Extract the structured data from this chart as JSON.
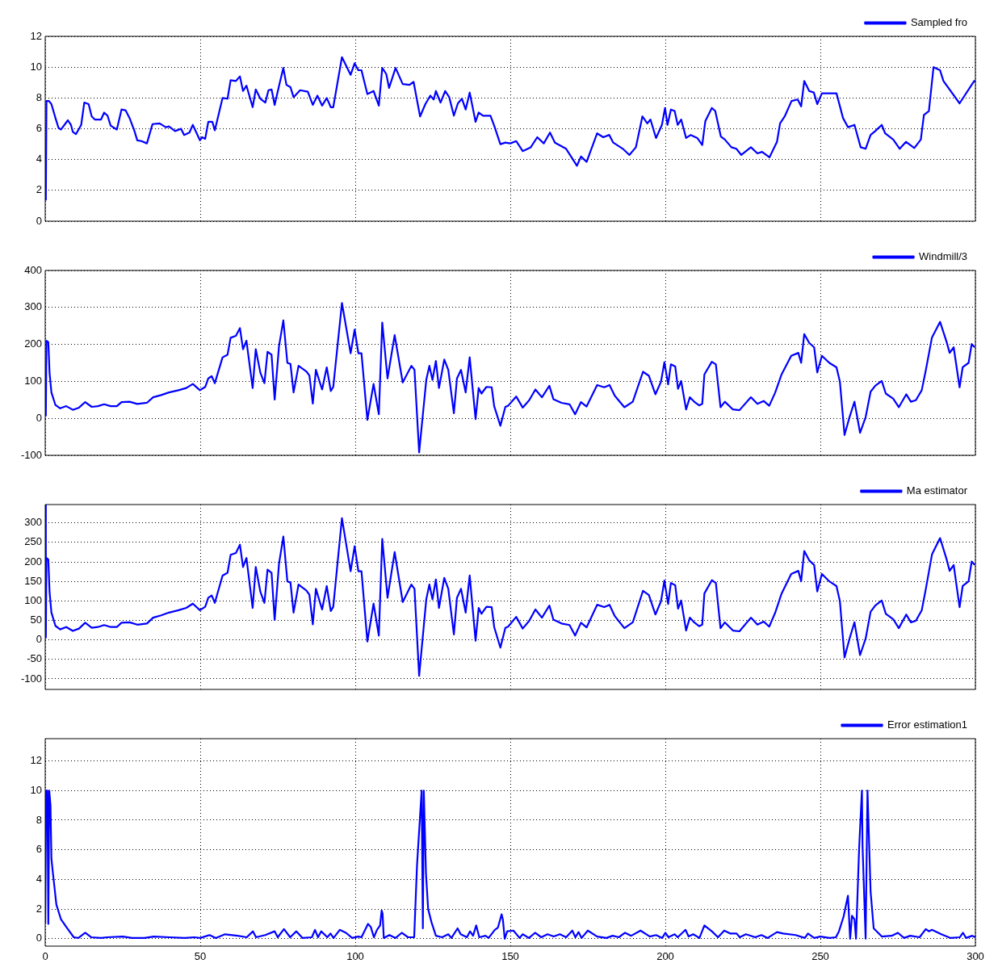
{
  "chart_data": [
    {
      "type": "line",
      "xlim": [
        0,
        300
      ],
      "xticks": [
        0,
        50,
        100,
        150,
        200,
        250,
        300
      ],
      "ylim": [
        0,
        12
      ],
      "yticks": [
        0,
        2,
        4,
        6,
        8,
        10,
        12
      ],
      "grid": true,
      "legend": "top right",
      "tick_labels": "y",
      "series": [
        {
          "name": "Sampled fro",
          "color": "#0000ff",
          "x": [
            0.2,
            0.4,
            1.2,
            2,
            3.3,
            4.3,
            5.1,
            7.3,
            8.3,
            8.9,
            9.9,
            11.6,
            12.6,
            14,
            15,
            16,
            18,
            19,
            20.1,
            21.1,
            23.1,
            24.6,
            25.9,
            27.2,
            28.7,
            29.7,
            31,
            32.8,
            34.6,
            36.9,
            38.9,
            39.9,
            41.9,
            43.8,
            44.8,
            46.5,
            47.6,
            49.9,
            50.6,
            51.6,
            52.6,
            53.9,
            54.7,
            57.2,
            58.8,
            59.8,
            61.5,
            62.8,
            63.8,
            64.9,
            66.9,
            67.9,
            69.4,
            71,
            72,
            73,
            74,
            75.6,
            76.8,
            77.8,
            79.1,
            80.1,
            82.2,
            84.7,
            86.3,
            87.8,
            89.3,
            90.8,
            92.1,
            92.9,
            95.7,
            98.5,
            99.8,
            101,
            102,
            103.9,
            105.9,
            107.6,
            108.7,
            110,
            110.9,
            113,
            115.3,
            117.5,
            118.8,
            120.9,
            122.6,
            124.2,
            125.3,
            126,
            127.5,
            129,
            130.3,
            131.8,
            133.1,
            134.4,
            135.6,
            136.9,
            138.8,
            139.8,
            141.2,
            143.6,
            144.8,
            146.8,
            148.4,
            150,
            151.9,
            154,
            156.6,
            158.7,
            160.8,
            162.8,
            164.4,
            168,
            171.5,
            172.8,
            174.6,
            178,
            180,
            181.9,
            183.2,
            186.3,
            188.4,
            190.5,
            192.6,
            194.2,
            195.2,
            197,
            198.9,
            199.9,
            200.7,
            201.8,
            203,
            204,
            205.1,
            206.7,
            208.2,
            210.3,
            211.9,
            212.9,
            215,
            216.1,
            217.9,
            219.2,
            221.3,
            222.9,
            224.5,
            227.6,
            229.7,
            231.2,
            233.6,
            236,
            237,
            238.5,
            240.7,
            242.7,
            243.8,
            244.8,
            246.4,
            247.9,
            249,
            250.5,
            252.1,
            255.2,
            257.3,
            258.9,
            261,
            263,
            264.6,
            266.2,
            267.7,
            269.8,
            270.9,
            273.5,
            275.6,
            277.6,
            280.3,
            282.4,
            283.4,
            285,
            286.5,
            288.6,
            289.7,
            294.9,
            299.6,
            300
          ],
          "values": [
            1.35,
            7.8,
            7.8,
            7.6,
            6.7,
            6.05,
            5.95,
            6.55,
            6.25,
            5.8,
            5.65,
            6.25,
            7.7,
            7.6,
            6.8,
            6.6,
            6.6,
            7.05,
            6.85,
            6.2,
            5.95,
            7.25,
            7.2,
            6.7,
            5.9,
            5.25,
            5.2,
            5.05,
            6.3,
            6.35,
            6.1,
            6.15,
            5.85,
            6.0,
            5.6,
            5.75,
            6.25,
            5.25,
            5.45,
            5.35,
            6.45,
            6.45,
            5.9,
            8.0,
            7.95,
            9.15,
            9.1,
            9.4,
            8.45,
            8.8,
            7.4,
            8.55,
            7.95,
            7.7,
            8.5,
            8.55,
            7.55,
            8.95,
            9.95,
            8.85,
            8.7,
            8.05,
            8.5,
            8.4,
            7.55,
            8.15,
            7.5,
            8.0,
            7.4,
            7.4,
            10.65,
            9.5,
            10.25,
            9.8,
            9.8,
            8.25,
            8.45,
            7.5,
            9.95,
            9.55,
            8.65,
            9.95,
            8.9,
            8.85,
            9.05,
            6.8,
            7.6,
            8.15,
            7.9,
            8.45,
            7.7,
            8.45,
            8.05,
            6.85,
            7.65,
            7.95,
            7.25,
            8.35,
            6.45,
            7.05,
            6.85,
            6.85,
            6.2,
            5.0,
            5.1,
            5.05,
            5.2,
            4.55,
            4.8,
            5.45,
            5.05,
            5.75,
            5.1,
            4.7,
            3.6,
            4.2,
            3.85,
            5.7,
            5.45,
            5.6,
            5.1,
            4.7,
            4.3,
            4.8,
            6.8,
            6.35,
            6.6,
            5.4,
            6.25,
            7.35,
            6.25,
            7.25,
            7.15,
            6.25,
            6.6,
            5.4,
            5.6,
            5.4,
            4.95,
            6.5,
            7.35,
            7.15,
            5.5,
            5.3,
            4.8,
            4.7,
            4.3,
            4.8,
            4.4,
            4.5,
            4.15,
            5.15,
            6.35,
            6.8,
            7.8,
            7.9,
            7.45,
            9.1,
            8.45,
            8.35,
            7.6,
            8.3,
            8.3,
            8.3,
            6.7,
            6.1,
            6.25,
            4.8,
            4.7,
            5.6,
            5.85,
            6.25,
            5.7,
            5.3,
            4.7,
            5.15,
            4.75,
            5.3,
            6.9,
            7.15,
            10.0,
            9.8,
            9.1,
            7.65,
            9.1,
            9.1
          ]
        }
      ]
    },
    {
      "type": "line",
      "xlim": [
        0,
        300
      ],
      "xticks": [
        0,
        50,
        100,
        150,
        200,
        250,
        300
      ],
      "ylim": [
        -100,
        400
      ],
      "yticks": [
        -100,
        0,
        100,
        200,
        300,
        400
      ],
      "grid": true,
      "legend": "top right",
      "tick_labels": "y",
      "series": [
        {
          "name": "Windmill/3",
          "color": "#0000ff",
          "x": [
            0.2,
            0.4,
            1,
            1.4,
            2,
            3.3,
            4.8,
            6.8,
            8.9,
            10.9,
            12.9,
            15,
            17,
            19,
            21.1,
            23.1,
            24.6,
            27.2,
            29.7,
            32.8,
            34.8,
            37.4,
            39.9,
            43,
            45.5,
            47.6,
            49.9,
            51.6,
            52.6,
            53.7,
            54.7,
            57.2,
            58.8,
            59.8,
            61.5,
            62.8,
            63.8,
            64.9,
            66.9,
            67.9,
            69.4,
            70.7,
            71.7,
            73,
            74,
            75.4,
            76.8,
            78.1,
            79.1,
            80.1,
            81.7,
            84.2,
            85.2,
            86.3,
            87.3,
            89.3,
            90.8,
            92.1,
            92.9,
            95.7,
            98.5,
            99.8,
            101,
            102,
            103.9,
            105.9,
            107.6,
            108.7,
            110.4,
            112.7,
            115.3,
            118.1,
            119.1,
            120.6,
            122.9,
            123.9,
            124.9,
            126,
            127,
            128.7,
            130,
            131.8,
            132.8,
            134.1,
            135.6,
            136.9,
            138.8,
            139.8,
            140.7,
            142.3,
            144,
            144.8,
            146.8,
            148.4,
            149.3,
            151.9,
            154,
            156.1,
            158.1,
            160.2,
            162.6,
            163.9,
            166.5,
            169.1,
            170.9,
            172.8,
            174.6,
            178,
            180.3,
            182,
            183.7,
            186.8,
            189.5,
            192.8,
            194.7,
            196.8,
            198.6,
            199.7,
            200.9,
            201.8,
            203.2,
            204.1,
            205.1,
            206.7,
            207.9,
            209.3,
            210.9,
            211.9,
            212.6,
            215,
            216.3,
            217.8,
            219.2,
            221.8,
            223.9,
            227.6,
            229.7,
            231.7,
            233.5,
            235.4,
            237.5,
            240.6,
            242.9,
            243.8,
            244.8,
            246.4,
            248,
            249,
            250.5,
            252.9,
            255.2,
            256.3,
            257.8,
            259.4,
            261,
            262.8,
            264.6,
            266.2,
            267.7,
            269.8,
            271.1,
            273.5,
            275.3,
            277.7,
            279.2,
            280.8,
            282.7,
            284,
            286,
            288.6,
            290.7,
            291.7,
            293,
            294.9,
            295.9,
            297.8,
            298.8,
            299.8
          ],
          "values": [
            6,
            210,
            206,
            123,
            70,
            36,
            27,
            33,
            23,
            29,
            44,
            31,
            33,
            38,
            33,
            33,
            44,
            45,
            39,
            42,
            57,
            63,
            70,
            76,
            82,
            93,
            76,
            85,
            108,
            114,
            95,
            165,
            172,
            218,
            223,
            244,
            187,
            210,
            82,
            187,
            123,
            95,
            180,
            172,
            51,
            195,
            265,
            150,
            147,
            70,
            142,
            127,
            116,
            40,
            131,
            78,
            138,
            74,
            85,
            312,
            176,
            240,
            176,
            176,
            -4,
            93,
            11,
            259,
            108,
            225,
            97,
            142,
            131,
            -92,
            104,
            142,
            104,
            155,
            82,
            159,
            131,
            14,
            108,
            131,
            70,
            165,
            -2,
            82,
            67,
            85,
            84,
            33,
            -20,
            31,
            34,
            59,
            29,
            49,
            78,
            57,
            88,
            52,
            42,
            38,
            11,
            44,
            32,
            90,
            84,
            90,
            61,
            30,
            45,
            126,
            115,
            65,
            99,
            152,
            92,
            146,
            140,
            80,
            101,
            24,
            57,
            45,
            35,
            39,
            119,
            153,
            146,
            30,
            45,
            24,
            22,
            57,
            39,
            47,
            34,
            69,
            119,
            169,
            177,
            150,
            228,
            204,
            192,
            124,
            169,
            150,
            138,
            99,
            -45,
            3,
            45,
            -39,
            3,
            72,
            88,
            101,
            67,
            53,
            30,
            65,
            45,
            49,
            76,
            130,
            219,
            261,
            207,
            177,
            192,
            84,
            138,
            150,
            201,
            192
          ]
        }
      ]
    },
    {
      "type": "line",
      "xlim": [
        0,
        300
      ],
      "xticks": [
        0,
        50,
        100,
        150,
        200,
        250,
        300
      ],
      "ylim": [
        -127,
        347
      ],
      "yticks": [
        -100,
        -50,
        0,
        50,
        100,
        150,
        200,
        250,
        300
      ],
      "grid": true,
      "legend": "top right",
      "tick_labels": "y",
      "series": [
        {
          "name": "Ma estimator",
          "color": "#0000ff",
          "x": [
            0,
            0.2,
            0.4,
            1,
            1.4,
            2,
            3.3,
            4.8,
            6.8,
            8.9,
            10.9,
            12.9,
            15,
            17,
            19,
            21.1,
            23.1,
            24.6,
            27.2,
            29.7,
            32.8,
            34.8,
            37.4,
            39.9,
            43,
            45.5,
            47.6,
            49.9,
            51.6,
            52.6,
            53.7,
            54.7,
            57.2,
            58.8,
            59.8,
            61.5,
            62.8,
            63.8,
            64.9,
            66.9,
            67.9,
            69.4,
            70.7,
            71.7,
            73,
            74,
            75.4,
            76.8,
            78.1,
            79.1,
            80.1,
            81.7,
            84.2,
            85.2,
            86.3,
            87.3,
            89.3,
            90.8,
            92.1,
            92.9,
            95.7,
            98.5,
            99.8,
            101,
            102,
            103.9,
            105.9,
            107.6,
            108.7,
            110.4,
            112.7,
            115.3,
            118.1,
            119.1,
            120.6,
            122.9,
            123.9,
            124.9,
            126,
            127,
            128.7,
            130,
            131.8,
            132.8,
            134.1,
            135.6,
            136.9,
            138.8,
            139.8,
            140.7,
            142.3,
            144,
            144.8,
            146.8,
            148.4,
            149.3,
            151.9,
            154,
            156.1,
            158.1,
            160.2,
            162.6,
            163.9,
            166.5,
            169.1,
            170.9,
            172.8,
            174.6,
            178,
            180.3,
            182,
            183.7,
            186.8,
            189.5,
            192.8,
            194.7,
            196.8,
            198.6,
            199.7,
            200.9,
            201.8,
            203.2,
            204.1,
            205.1,
            206.7,
            207.9,
            209.3,
            210.9,
            211.9,
            212.6,
            215,
            216.3,
            217.8,
            219.2,
            221.8,
            223.9,
            227.6,
            229.7,
            231.7,
            233.5,
            235.4,
            237.5,
            240.6,
            242.9,
            243.8,
            244.8,
            246.4,
            248,
            249,
            250.5,
            252.9,
            255.2,
            256.3,
            257.8,
            259.4,
            261,
            262.8,
            264.6,
            266.2,
            267.7,
            269.8,
            271.1,
            273.5,
            275.3,
            277.7,
            279.2,
            280.8,
            282.7,
            284,
            286,
            288.6,
            290.7,
            291.7,
            293,
            294.9,
            295.9,
            297.8,
            298.8,
            299.8
          ],
          "values": [
            345,
            6,
            210,
            206,
            123,
            70,
            36,
            27,
            33,
            23,
            29,
            44,
            31,
            33,
            38,
            33,
            33,
            44,
            45,
            39,
            42,
            57,
            63,
            70,
            76,
            82,
            93,
            76,
            85,
            108,
            114,
            95,
            165,
            172,
            218,
            223,
            244,
            187,
            210,
            82,
            187,
            123,
            95,
            180,
            172,
            51,
            195,
            265,
            150,
            147,
            70,
            142,
            127,
            116,
            40,
            131,
            78,
            138,
            74,
            85,
            312,
            176,
            240,
            176,
            176,
            -4,
            93,
            11,
            259,
            108,
            225,
            97,
            142,
            131,
            -92,
            104,
            142,
            104,
            155,
            82,
            159,
            131,
            14,
            108,
            131,
            70,
            165,
            -2,
            82,
            67,
            85,
            84,
            33,
            -20,
            31,
            34,
            59,
            29,
            49,
            78,
            57,
            88,
            52,
            42,
            38,
            11,
            44,
            32,
            90,
            84,
            90,
            61,
            30,
            45,
            126,
            115,
            65,
            99,
            152,
            92,
            146,
            140,
            80,
            101,
            24,
            57,
            45,
            35,
            39,
            119,
            153,
            146,
            30,
            45,
            24,
            22,
            57,
            39,
            47,
            34,
            69,
            119,
            169,
            177,
            150,
            228,
            204,
            192,
            124,
            169,
            150,
            138,
            99,
            -45,
            3,
            45,
            -39,
            3,
            72,
            88,
            101,
            67,
            53,
            30,
            65,
            45,
            49,
            76,
            130,
            219,
            261,
            207,
            177,
            192,
            84,
            138,
            150,
            201,
            192
          ]
        }
      ]
    },
    {
      "type": "line",
      "xlim": [
        0,
        300
      ],
      "xticks": [
        0,
        50,
        100,
        150,
        200,
        250,
        300
      ],
      "ylim": [
        -0.5,
        13.5
      ],
      "yticks": [
        0,
        2,
        4,
        6,
        8,
        10,
        12
      ],
      "grid": true,
      "legend": "top right",
      "series": [
        {
          "name": "Error estimation1",
          "color": "#0000ff",
          "x": [
            0,
            0.3,
            0.7,
            1,
            1.3,
            1.7,
            2,
            2.5,
            3.6,
            5.1,
            7.1,
            9.2,
            10.7,
            12.9,
            14.8,
            18,
            20,
            25,
            28,
            32,
            35,
            40,
            45,
            48,
            50,
            53,
            55,
            58,
            62,
            65,
            67,
            68,
            71,
            74,
            75,
            77,
            79,
            81,
            83,
            86,
            87,
            88,
            89,
            91,
            92,
            93,
            95,
            97,
            99,
            101,
            102,
            104.1,
            105,
            106,
            107,
            108,
            108.5,
            108.8,
            109.2,
            111,
            113,
            115,
            117,
            119,
            119.9,
            121.4,
            121.8,
            122.1,
            122.8,
            123.5,
            124.6,
            126,
            128,
            130,
            131,
            133,
            134,
            136,
            137,
            138,
            139,
            140,
            142,
            143,
            145,
            146,
            147.2,
            147.6,
            148.2,
            149,
            151,
            153,
            154,
            156,
            158,
            160,
            162,
            164,
            166,
            168,
            170,
            171,
            172,
            173,
            175,
            178,
            181,
            183,
            185,
            187,
            189,
            192,
            195,
            197,
            199,
            200,
            201,
            203,
            204,
            206.5,
            207.5,
            209,
            211,
            212.6,
            215,
            217,
            219,
            221,
            223,
            224,
            226,
            229,
            231,
            233,
            236,
            238,
            242,
            245,
            246,
            248,
            250,
            253,
            255,
            256,
            257.5,
            258.9,
            259.6,
            260.2,
            261,
            261.5,
            262.5,
            263.4,
            263.6,
            264.6,
            265.2,
            266.2,
            267.2,
            269.8,
            273,
            275,
            277,
            279,
            282,
            284,
            285,
            286,
            289,
            292,
            295,
            296,
            297,
            299,
            300
          ],
          "values": [
            1,
            10,
            10,
            1,
            10,
            9,
            5.4,
            4.4,
            2.3,
            1.3,
            0.7,
            0.1,
            0.05,
            0.4,
            0.1,
            0.05,
            0.1,
            0.15,
            0.05,
            0.05,
            0.15,
            0.1,
            0.05,
            0.1,
            0.05,
            0.25,
            0.05,
            0.3,
            0.2,
            0.1,
            0.5,
            0.1,
            0.25,
            0.5,
            0.1,
            0.65,
            0.1,
            0.5,
            0.05,
            0.1,
            0.6,
            0.1,
            0.5,
            0.1,
            0.35,
            0.05,
            0.6,
            0.4,
            0.05,
            0.15,
            0.1,
            1.0,
            0.8,
            0.1,
            0.6,
            0.9,
            1.9,
            1.7,
            0.05,
            0.25,
            0.05,
            0.4,
            0.1,
            0.1,
            4.9,
            10,
            0.7,
            10,
            4.4,
            2,
            1.1,
            0.2,
            0.1,
            0.3,
            0.05,
            0.7,
            0.3,
            0.1,
            0.5,
            0.2,
            0.9,
            0.1,
            0.2,
            0.05,
            0.6,
            0.75,
            1.65,
            1.3,
            0,
            0.5,
            0.55,
            0.05,
            0.3,
            0.05,
            0.4,
            0.1,
            0.3,
            0.15,
            0.3,
            0.1,
            0.55,
            0.1,
            0.45,
            0.05,
            0.55,
            0.15,
            0.05,
            0.2,
            0.1,
            0.4,
            0.2,
            0.55,
            0.15,
            0.25,
            0.05,
            0.4,
            0.1,
            0.3,
            0.1,
            0.6,
            0.15,
            0.3,
            0.05,
            0.9,
            0.5,
            0.1,
            0.55,
            0.35,
            0.35,
            0.1,
            0.3,
            0.1,
            0.25,
            0.05,
            0.45,
            0.35,
            0.25,
            0.05,
            0.35,
            0.05,
            0.15,
            0.05,
            0.1,
            0.5,
            1.5,
            2.9,
            0,
            1.55,
            1.3,
            0,
            6.1,
            10,
            6.3,
            0,
            10,
            3.2,
            0.7,
            0.15,
            0.2,
            0.4,
            0.05,
            0.2,
            0.1,
            0.65,
            0.5,
            0.6,
            0.3,
            0.05,
            0.1,
            0.4,
            0.05,
            0.2,
            0.1
          ]
        }
      ]
    }
  ]
}
